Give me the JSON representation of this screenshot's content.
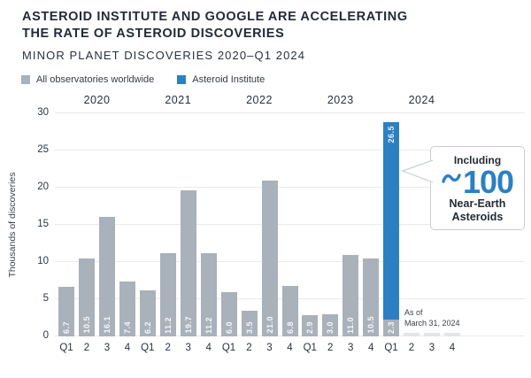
{
  "header": {
    "title_line1": "ASTEROID INSTITUTE AND GOOGLE ARE ACCELERATING",
    "title_line2": "THE RATE OF ASTEROID DISCOVERIES",
    "subtitle": "MINOR PLANET DISCOVERIES 2020–Q1 2024"
  },
  "legend": [
    {
      "label": "All observatories worldwide",
      "color": "#a9b1bb"
    },
    {
      "label": "Asteroid Institute",
      "color": "#2b80c4"
    }
  ],
  "chart_data": {
    "type": "bar",
    "ylabel": "Thousands of discoveries",
    "ylim": [
      0,
      30
    ],
    "yticks": [
      0,
      5,
      10,
      15,
      20,
      25,
      30
    ],
    "quarter_labels": [
      "Q1",
      "2",
      "3",
      "4"
    ],
    "grid": true,
    "legend_position": "top-left",
    "groups": [
      {
        "year": "2020",
        "all_observatories": [
          6.7,
          10.5,
          16.1,
          7.4
        ],
        "asteroid_institute": [
          0,
          0,
          0,
          0
        ]
      },
      {
        "year": "2021",
        "all_observatories": [
          6.2,
          11.2,
          19.7,
          11.2
        ],
        "asteroid_institute": [
          0,
          0,
          0,
          0
        ]
      },
      {
        "year": "2022",
        "all_observatories": [
          6.0,
          3.5,
          21.0,
          6.8
        ],
        "asteroid_institute": [
          0,
          0,
          0,
          0
        ]
      },
      {
        "year": "2023",
        "all_observatories": [
          2.9,
          3.0,
          11.0,
          10.5
        ],
        "asteroid_institute": [
          0,
          0,
          0,
          0
        ]
      },
      {
        "year": "2024",
        "all_observatories": [
          2.3,
          null,
          null,
          null
        ],
        "asteroid_institute": [
          26.5,
          null,
          null,
          null
        ]
      }
    ],
    "colors": {
      "all_observatories": "#a9b1bb",
      "asteroid_institute": "#2b80c4",
      "future_placeholder": "#e2e5e9",
      "gridline": "#e8eaec"
    }
  },
  "callout": {
    "line1": "Including",
    "approx_symbol": "~",
    "big_number": "100",
    "line2": "Near-Earth",
    "line3": "Asteroids",
    "accent_color": "#2b80c4"
  },
  "note": {
    "line1": "As of",
    "line2": "March 31, 2024"
  }
}
